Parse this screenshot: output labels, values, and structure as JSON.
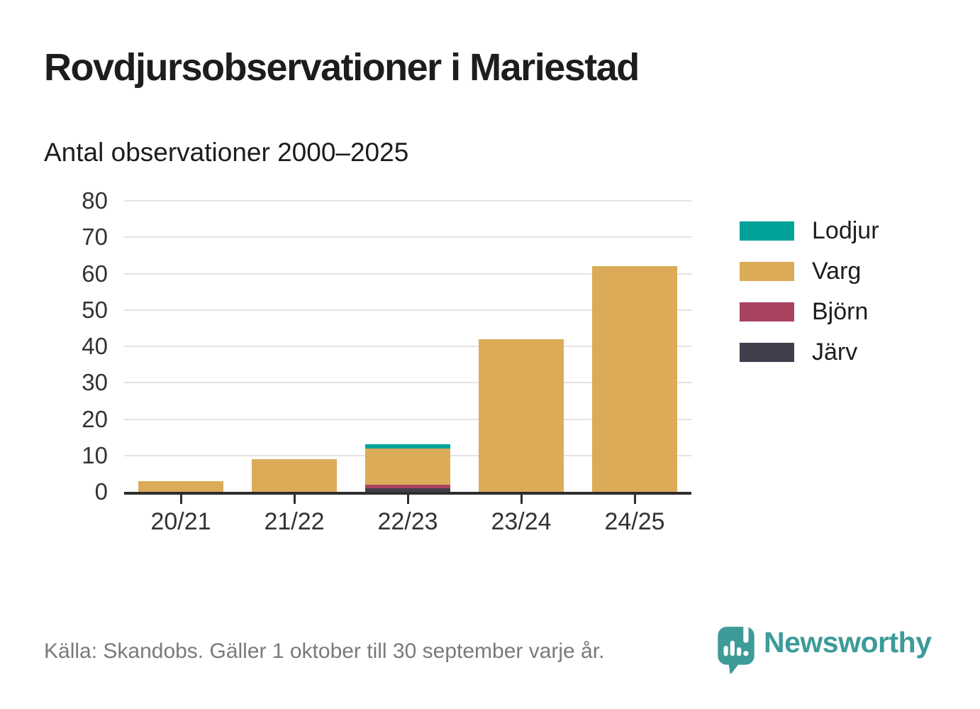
{
  "header": {
    "title": "Rovdjursobservationer i Mariestad",
    "subtitle": "Antal observationer 2000–2025"
  },
  "footer": {
    "source": "Källa: Skandobs. Gäller 1 oktober till 30 september varje år.",
    "brand": "Newsworthy"
  },
  "colors": {
    "accent_teal": "#3d9b98",
    "axis": "#2d2d2d",
    "gridline": "#e3e3e3",
    "text_dark": "#1d1d1d",
    "text_muted": "#7a7a7a"
  },
  "chart_data": {
    "type": "bar",
    "stacked": true,
    "title": "Rovdjursobservationer i Mariestad",
    "subtitle": "Antal observationer 2000–2025",
    "categories": [
      "20/21",
      "21/22",
      "22/23",
      "23/24",
      "24/25"
    ],
    "series": [
      {
        "name": "Lodjur",
        "color": "#00a29a",
        "values": [
          0,
          0,
          1,
          0,
          0
        ]
      },
      {
        "name": "Varg",
        "color": "#dbab58",
        "values": [
          3,
          9,
          10,
          42,
          62
        ]
      },
      {
        "name": "Björn",
        "color": "#a8425f",
        "values": [
          0,
          0,
          1,
          0,
          0
        ]
      },
      {
        "name": "Järv",
        "color": "#423e4d",
        "values": [
          0,
          0,
          1,
          0,
          0
        ]
      }
    ],
    "stack_order_bottom_to_top": [
      "Järv",
      "Björn",
      "Varg",
      "Lodjur"
    ],
    "legend_order": [
      "Lodjur",
      "Varg",
      "Björn",
      "Järv"
    ],
    "legend_position": "right",
    "xlabel": "",
    "ylabel": "",
    "ylim": [
      0,
      80
    ],
    "yticks": [
      0,
      10,
      20,
      30,
      40,
      50,
      60,
      70,
      80
    ],
    "grid": "horizontal"
  }
}
